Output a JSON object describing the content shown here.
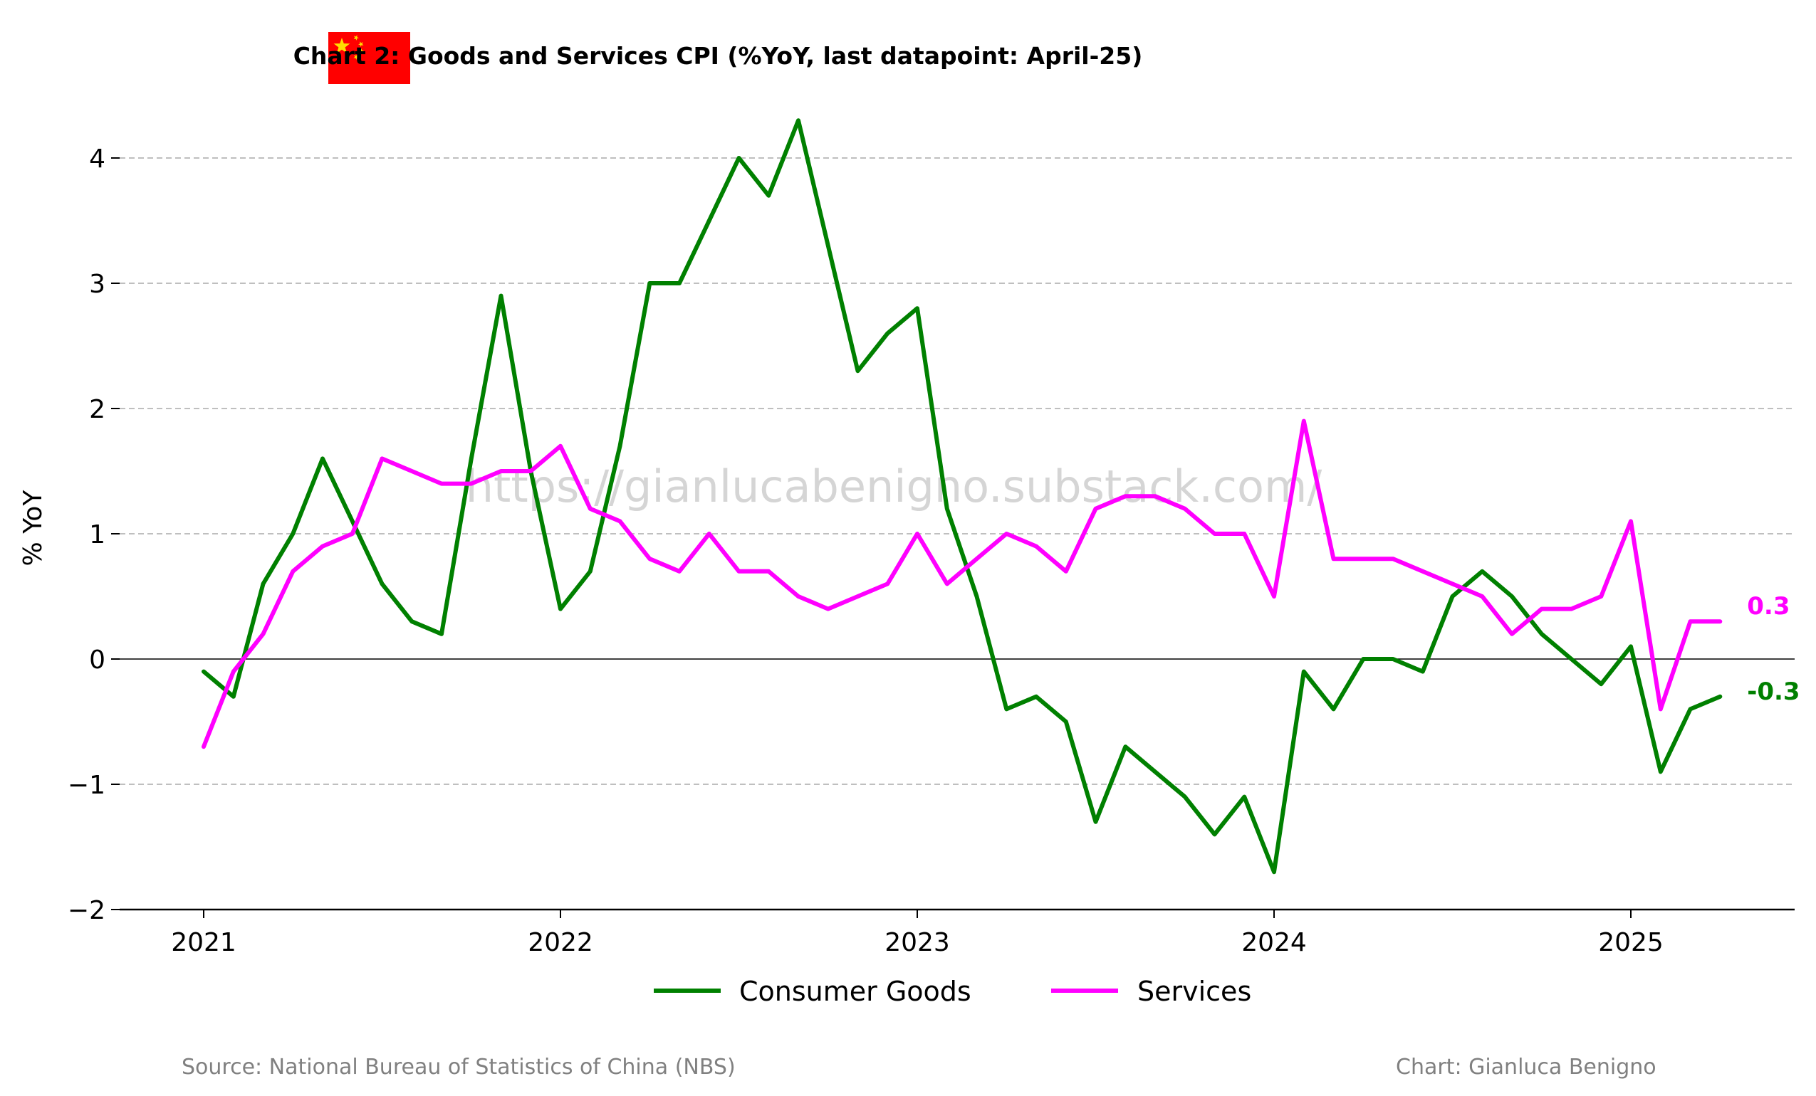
{
  "colors": {
    "goods": "#008000",
    "services": "#ff00ff",
    "grid": "#bfbfbf",
    "flag_red": "#ff0000",
    "flag_star": "#ffde00",
    "footer": "#808080"
  },
  "flag": {
    "icon": "china-flag-icon"
  },
  "watermark": "https://gianlucabenigno.substack.com/",
  "footer": {
    "source": "Source: National Bureau of Statistics of China (NBS)",
    "credit": "Chart: Gianluca Benigno"
  },
  "chart_data": {
    "type": "line",
    "title": "Chart 2: Goods and Services CPI (%YoY, last datapoint: April-25)",
    "ylabel": "% YoY",
    "xlabel": "",
    "ylim": [
      -2,
      4.5
    ],
    "xlim": [
      "2020-10",
      "2025-06"
    ],
    "grid": "horizontal dashed",
    "legend": "bottom-center",
    "yticks": [
      -2,
      -1,
      0,
      1,
      2,
      3,
      4
    ],
    "ytick_labels": [
      "−2",
      "−1",
      "0",
      "1",
      "2",
      "3",
      "4"
    ],
    "xtick_labels": [
      "2021",
      "2022",
      "2023",
      "2024",
      "2025"
    ],
    "x": [
      "2021-01",
      "2021-02",
      "2021-03",
      "2021-04",
      "2021-05",
      "2021-06",
      "2021-07",
      "2021-08",
      "2021-09",
      "2021-10",
      "2021-11",
      "2021-12",
      "2022-01",
      "2022-02",
      "2022-03",
      "2022-04",
      "2022-05",
      "2022-06",
      "2022-07",
      "2022-08",
      "2022-09",
      "2022-10",
      "2022-11",
      "2022-12",
      "2023-01",
      "2023-02",
      "2023-03",
      "2023-04",
      "2023-05",
      "2023-06",
      "2023-07",
      "2023-08",
      "2023-09",
      "2023-10",
      "2023-11",
      "2023-12",
      "2024-01",
      "2024-02",
      "2024-03",
      "2024-04",
      "2024-05",
      "2024-06",
      "2024-07",
      "2024-08",
      "2024-09",
      "2024-10",
      "2024-11",
      "2024-12",
      "2025-01",
      "2025-02",
      "2025-03",
      "2025-04"
    ],
    "series": [
      {
        "name": "Consumer Goods",
        "color": "#008000",
        "end_label": "-0.3",
        "values": [
          -0.1,
          -0.3,
          0.6,
          1.0,
          1.6,
          1.1,
          0.6,
          0.3,
          0.2,
          1.6,
          2.9,
          1.5,
          0.4,
          0.7,
          1.7,
          3.0,
          3.0,
          3.5,
          4.0,
          3.7,
          4.3,
          3.3,
          2.3,
          2.6,
          2.8,
          1.2,
          0.5,
          -0.4,
          -0.3,
          -0.5,
          -1.3,
          -0.7,
          -0.9,
          -1.1,
          -1.4,
          -1.1,
          -1.7,
          -0.1,
          -0.4,
          0.0,
          0.0,
          -0.1,
          0.5,
          0.7,
          0.5,
          0.2,
          0.0,
          -0.2,
          0.1,
          -0.9,
          -0.4,
          -0.3
        ]
      },
      {
        "name": "Services",
        "color": "#ff00ff",
        "end_label": "0.3",
        "values": [
          -0.7,
          -0.1,
          0.2,
          0.7,
          0.9,
          1.0,
          1.6,
          1.5,
          1.4,
          1.4,
          1.5,
          1.5,
          1.7,
          1.2,
          1.1,
          0.8,
          0.7,
          1.0,
          0.7,
          0.7,
          0.5,
          0.4,
          0.5,
          0.6,
          1.0,
          0.6,
          0.8,
          1.0,
          0.9,
          0.7,
          1.2,
          1.3,
          1.3,
          1.2,
          1.0,
          1.0,
          0.5,
          1.9,
          0.8,
          0.8,
          0.8,
          0.7,
          0.6,
          0.5,
          0.2,
          0.4,
          0.4,
          0.5,
          1.1,
          -0.4,
          0.3,
          0.3
        ]
      }
    ]
  }
}
